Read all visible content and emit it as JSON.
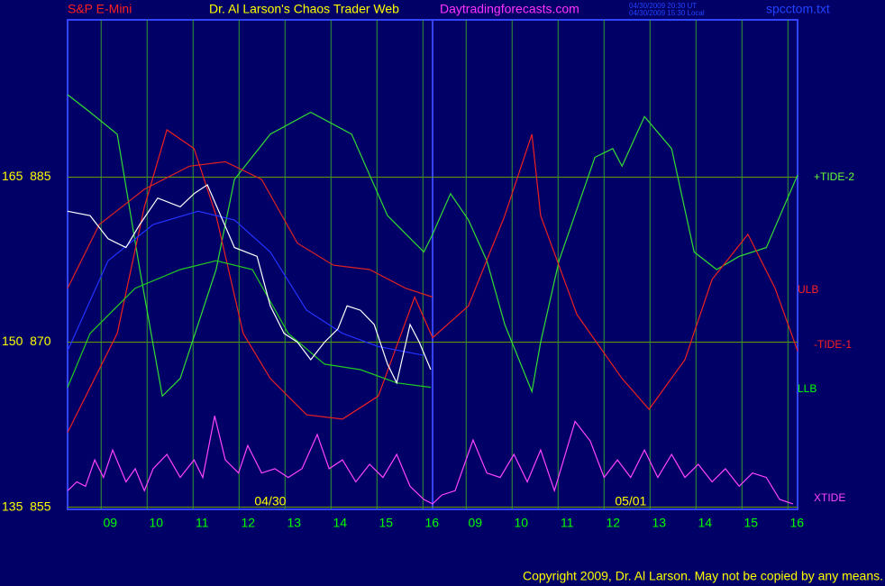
{
  "chart_data": {
    "type": "line",
    "title": "Dr. Al Larson's Chaos Trader Web",
    "symbol": "S&P E-Mini",
    "site": "Daytradingforecasts.com",
    "timestamps": [
      "04/30/2009 20:30 UT",
      "04/30/2009 15:30 Local"
    ],
    "file": "spcctom.txt",
    "copyright": "Copyright 2009, Dr. Al Larson. May not be copied by any means.",
    "dates": [
      {
        "text": "04/30",
        "x": 12.68
      },
      {
        "text": "05/01",
        "x": 20.52
      }
    ],
    "annotations": [
      {
        "text": "+TIDE-2",
        "color": "#66ff33"
      },
      {
        "text": "ULB",
        "color": "#ff2020"
      },
      {
        "text": "-TIDE-1",
        "color": "#ff2020"
      },
      {
        "text": "LLB",
        "color": "#00ff00"
      },
      {
        "text": "XTIDE",
        "color": "#ff44ff"
      }
    ],
    "xlim": [
      8.27,
      24.15
    ],
    "xticks": [
      {
        "value": 9,
        "label": "09"
      },
      10,
      11,
      12,
      13,
      14,
      15,
      16,
      {
        "value": 16.94,
        "label": "09"
      },
      {
        "value": 17.94,
        "label": "10"
      },
      {
        "value": 18.94,
        "label": "11"
      },
      {
        "value": 19.94,
        "label": "12"
      },
      {
        "value": 20.94,
        "label": "13"
      },
      {
        "value": 21.94,
        "label": "14"
      },
      {
        "value": 22.94,
        "label": "15"
      },
      {
        "value": 23.94,
        "label": "16"
      }
    ],
    "ylim": [
      854.8,
      899.3
    ],
    "yticks": [
      {
        "value": 855,
        "label": "135  855"
      },
      {
        "value": 870,
        "label": "150  870"
      },
      {
        "value": 885,
        "label": "165  885"
      }
    ],
    "grid": true,
    "series": [
      {
        "color": "#33dd33",
        "x": [
          8.27,
          8.76,
          9.35,
          9.84,
          10.33,
          10.72,
          11.5,
          11.9,
          12.68,
          13.56,
          14.45,
          15.23,
          16.02,
          16.21,
          16.6,
          16.99,
          17.39,
          17.78,
          18.37,
          18.56,
          18.96,
          19.74,
          20.13,
          20.33,
          20.82,
          21.41,
          21.9,
          22.39,
          22.88,
          23.47,
          24.15
        ],
        "values": [
          892.5,
          890.9,
          888.9,
          876.6,
          865.1,
          866.7,
          876.6,
          884.8,
          888.9,
          890.9,
          888.9,
          881.5,
          878.2,
          879.8,
          883.5,
          881.1,
          877.4,
          871.6,
          865.5,
          870.0,
          877.4,
          886.8,
          887.6,
          886.0,
          890.5,
          887.6,
          878.2,
          876.6,
          877.8,
          878.6,
          885.2
        ]
      },
      {
        "color": "#ee2020",
        "x": [
          8.27,
          9.35,
          9.94,
          10.43,
          11.02,
          11.5,
          12.09,
          12.68,
          13.47,
          14.25,
          15.03,
          15.82,
          16.21,
          16.99,
          17.78,
          18.37,
          18.56,
          19.35,
          20.33,
          20.92,
          21.7,
          22.29,
          23.07,
          23.66,
          24.15
        ],
        "values": [
          861.8,
          870.8,
          882.3,
          889.3,
          887.6,
          881.5,
          870.8,
          866.7,
          863.4,
          863.0,
          865.1,
          874.1,
          870.4,
          873.3,
          881.5,
          888.9,
          881.5,
          872.5,
          866.7,
          863.9,
          868.4,
          875.7,
          879.8,
          874.9,
          869.2
        ]
      },
      {
        "color": "#dd2222",
        "x": [
          8.27,
          8.96,
          9.94,
          10.92,
          11.7,
          12.49,
          13.27,
          14.05,
          14.84,
          15.62,
          16.21
        ],
        "values": [
          874.9,
          880.7,
          883.9,
          886.0,
          886.4,
          884.8,
          879.0,
          877.0,
          876.6,
          874.9,
          874.1
        ]
      },
      {
        "color": "#2233ff",
        "x": [
          8.27,
          9.15,
          10.13,
          11.11,
          11.9,
          12.68,
          13.47,
          14.25,
          15.03,
          16.02
        ],
        "values": [
          869.2,
          877.4,
          880.7,
          881.9,
          881.1,
          878.2,
          872.9,
          870.8,
          869.6,
          868.8
        ]
      },
      {
        "color": "#22cc22",
        "x": [
          8.27,
          8.76,
          9.74,
          10.72,
          11.5,
          12.29,
          13.07,
          13.86,
          14.64,
          15.43,
          16.17
        ],
        "values": [
          865.9,
          870.8,
          874.9,
          876.6,
          877.4,
          876.6,
          870.8,
          868.0,
          867.5,
          866.3,
          865.9
        ]
      },
      {
        "color": "#ff44ff",
        "x": [
          8.27,
          8.47,
          8.66,
          8.86,
          9.05,
          9.25,
          9.54,
          9.74,
          9.94,
          10.13,
          10.43,
          10.72,
          11.02,
          11.21,
          11.47,
          11.7,
          11.99,
          12.19,
          12.49,
          12.78,
          13.07,
          13.37,
          13.7,
          13.96,
          14.25,
          14.54,
          14.84,
          15.13,
          15.43,
          15.72,
          16.02,
          16.21,
          16.41,
          16.7,
          17.09,
          17.39,
          17.68,
          17.98,
          18.27,
          18.56,
          18.86,
          19.31,
          19.64,
          19.94,
          20.23,
          20.52,
          20.82,
          21.11,
          21.41,
          21.7,
          21.99,
          22.29,
          22.58,
          22.88,
          23.17,
          23.47,
          23.76,
          24.05
        ],
        "values": [
          856.5,
          857.3,
          856.9,
          859.3,
          857.7,
          860.2,
          857.3,
          858.5,
          856.5,
          858.5,
          859.8,
          857.7,
          859.3,
          857.7,
          863.3,
          859.3,
          858.1,
          860.6,
          858.1,
          858.5,
          857.7,
          858.5,
          861.6,
          858.5,
          859.3,
          857.3,
          858.9,
          857.7,
          859.8,
          856.9,
          855.7,
          855.3,
          856.1,
          856.5,
          861.1,
          858.1,
          857.7,
          859.8,
          857.3,
          860.2,
          856.5,
          862.8,
          861.0,
          857.7,
          859.3,
          857.7,
          860.2,
          857.7,
          859.8,
          857.7,
          858.9,
          857.3,
          858.5,
          856.9,
          858.1,
          857.7,
          855.7,
          855.3
        ]
      },
      {
        "color": "#ffffff",
        "x": [
          8.27,
          8.76,
          9.15,
          9.54,
          9.84,
          10.23,
          10.72,
          11.02,
          11.31,
          11.6,
          11.9,
          12.39,
          12.68,
          12.98,
          13.27,
          13.56,
          13.86,
          14.15,
          14.35,
          14.64,
          14.94,
          15.23,
          15.43,
          15.72,
          15.92,
          16.17
        ],
        "values": [
          881.9,
          881.5,
          879.4,
          878.6,
          880.7,
          883.1,
          882.3,
          883.5,
          884.3,
          881.5,
          878.6,
          877.8,
          873.3,
          870.8,
          870.0,
          868.4,
          870.0,
          871.2,
          873.3,
          872.9,
          871.6,
          868.0,
          866.3,
          871.6,
          870.0,
          867.5
        ]
      }
    ]
  }
}
